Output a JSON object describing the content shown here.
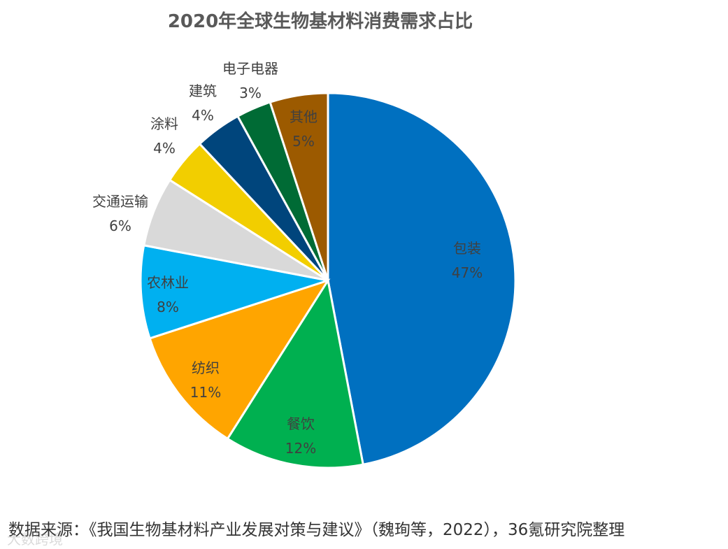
{
  "chart_data": {
    "type": "pie",
    "title": "2020年全球生物基材料消费需求占比",
    "categories": [
      "包装",
      "餐饮",
      "纺织",
      "农林业",
      "交通运输",
      "涂料",
      "建筑",
      "电子电器",
      "其他"
    ],
    "values": [
      47,
      12,
      11,
      8,
      6,
      4,
      4,
      3,
      5
    ],
    "value_labels": [
      "47%",
      "12%",
      "11%",
      "8%",
      "6%",
      "4%",
      "4%",
      "3%",
      "5%"
    ],
    "colors": [
      "#0070C0",
      "#00B050",
      "#FFA500",
      "#00B0F0",
      "#D9D9D9",
      "#F2CE00",
      "#00457C",
      "#006B35",
      "#9C5A00"
    ],
    "start_angle_deg": 0,
    "direction": "clockwise"
  },
  "footer": {
    "source": "数据来源：《我国生物基材料产业发展对策与建议》（魏珣等，2022），36氪研究院整理",
    "watermark": "大数跨境"
  }
}
